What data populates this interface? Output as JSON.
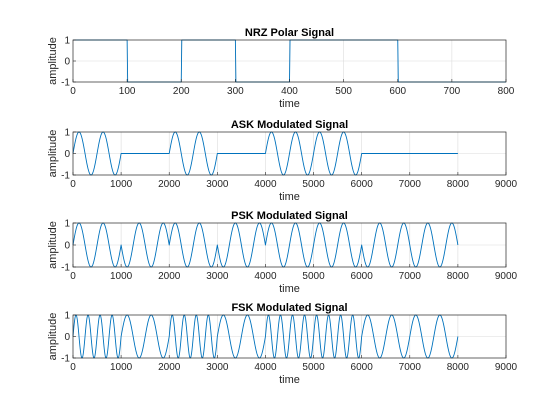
{
  "figure": {
    "background": "#ffffff",
    "line_color": "#0072bd"
  },
  "chart_data": [
    {
      "id": "nrz",
      "type": "line",
      "title": "NRZ Polar Signal",
      "xlabel": "time",
      "ylabel": "amplitude",
      "xlim": [
        0,
        800
      ],
      "ylim": [
        -1,
        1
      ],
      "xticks": [
        0,
        100,
        200,
        300,
        400,
        500,
        600,
        700,
        800
      ],
      "yticks": [
        -1,
        0,
        1
      ],
      "grid": true,
      "bits": [
        1,
        -1,
        1,
        -1,
        1,
        1,
        -1,
        -1
      ],
      "samples_per_bit": 100,
      "series": [
        {
          "x": [
            1,
            100,
            101,
            200,
            201,
            300,
            301,
            400,
            401,
            600,
            601,
            800
          ],
          "y": [
            1,
            1,
            -1,
            -1,
            1,
            1,
            -1,
            -1,
            1,
            1,
            -1,
            -1
          ]
        }
      ]
    },
    {
      "id": "ask",
      "type": "line",
      "title": "ASK Modulated Signal",
      "xlabel": "time",
      "ylabel": "amplitude",
      "xlim": [
        0,
        9000
      ],
      "ylim": [
        -1,
        1
      ],
      "xticks": [
        0,
        1000,
        2000,
        3000,
        4000,
        5000,
        6000,
        7000,
        8000,
        9000
      ],
      "yticks": [
        -1,
        0,
        1
      ],
      "grid": true,
      "cycles_per_bit": 2,
      "samples_per_bit": 1000,
      "bits": [
        1,
        0,
        1,
        0,
        1,
        1,
        0,
        0
      ],
      "series": []
    },
    {
      "id": "psk",
      "type": "line",
      "title": "PSK Modulated Signal",
      "xlabel": "time",
      "ylabel": "amplitude",
      "xlim": [
        0,
        9000
      ],
      "ylim": [
        -1,
        1
      ],
      "xticks": [
        0,
        1000,
        2000,
        3000,
        4000,
        5000,
        6000,
        7000,
        8000,
        9000
      ],
      "yticks": [
        -1,
        0,
        1
      ],
      "grid": true,
      "cycles_per_bit": 2,
      "samples_per_bit": 1000,
      "bits": [
        1,
        -1,
        1,
        -1,
        1,
        1,
        -1,
        -1
      ],
      "series": []
    },
    {
      "id": "fsk",
      "type": "line",
      "title": "FSK Modulated Signal",
      "xlabel": "time",
      "ylabel": "amplitude",
      "xlim": [
        0,
        9000
      ],
      "ylim": [
        -1,
        1
      ],
      "xticks": [
        0,
        1000,
        2000,
        3000,
        4000,
        5000,
        6000,
        7000,
        8000,
        9000
      ],
      "yticks": [
        -1,
        0,
        1
      ],
      "grid": true,
      "cycles_per_bit_high": 4,
      "cycles_per_bit_low": 2,
      "samples_per_bit": 1000,
      "bits": [
        1,
        -1,
        1,
        -1,
        1,
        1,
        -1,
        -1
      ],
      "series": []
    }
  ]
}
